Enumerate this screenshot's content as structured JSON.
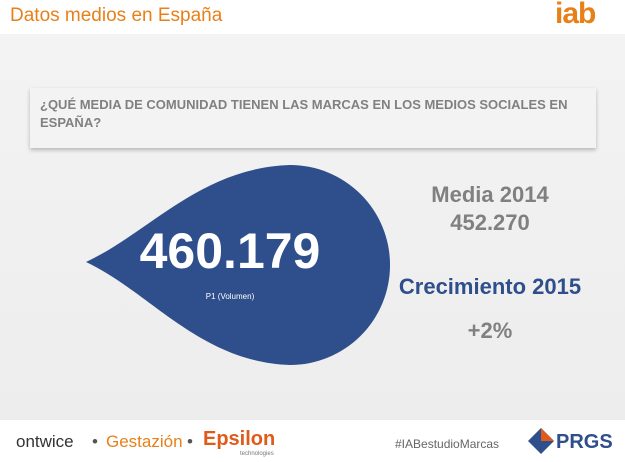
{
  "header": {
    "title": "Datos medios en España",
    "logo": "iab"
  },
  "question": "¿QUÉ MEDIA DE COMUNIDAD TIENEN LAS MARCAS EN LOS MEDIOS SOCIALES EN ESPAÑA?",
  "highlight": {
    "value": "460.179",
    "label": "P1 (Volumen)"
  },
  "stats": {
    "average_label": "Media 2014",
    "average_value": "452.270",
    "growth_label": "Crecimiento 2015",
    "growth_value": "+2%"
  },
  "footer": {
    "sponsors": [
      "ontwice",
      "Gestazión",
      "Epsilon",
      "technologies"
    ],
    "hashtag": "#IABestudioMarcas",
    "brand": "PRGS"
  }
}
